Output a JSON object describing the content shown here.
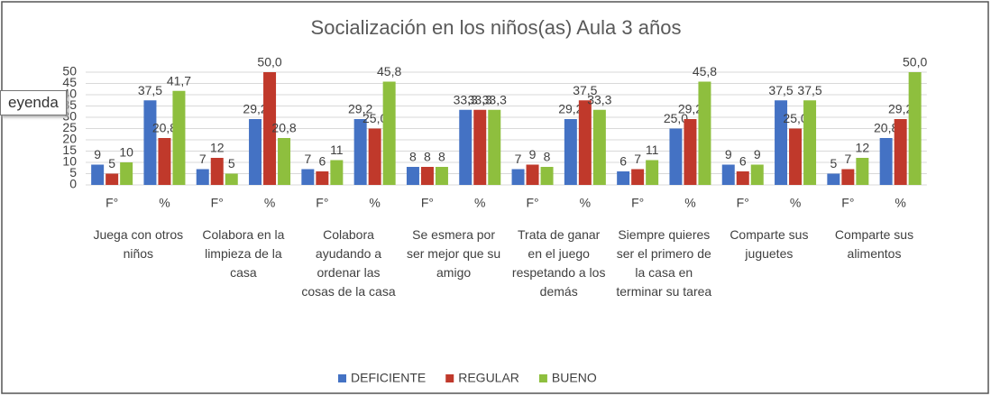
{
  "chart_data": {
    "type": "bar",
    "title": "Socialización en los niños(as) Aula 3 años",
    "tooltip": "eyenda",
    "categories": [
      "F°",
      "%",
      "F°",
      "%",
      "F°",
      "%",
      "F°",
      "%",
      "F°",
      "%",
      "F°",
      "%",
      "F°",
      "%",
      "F°",
      "%"
    ],
    "groups": [
      "Juega con otros niños",
      "Colabora en la limpieza de la casa",
      "Colabora ayudando a ordenar las cosas de la casa",
      "Se esmera por ser mejor que su amigo",
      "Trata de ganar en el juego respetando a los demás",
      "Siempre quieres ser el primero de la casa en terminar su tarea",
      "Comparte sus juguetes",
      "Comparte sus alimentos"
    ],
    "series": [
      {
        "name": "DEFICIENTE",
        "color": "#4472c4",
        "values": [
          9,
          37.5,
          7,
          29.2,
          7,
          29.2,
          8,
          33.3,
          7,
          29.2,
          6,
          25.0,
          9,
          37.5,
          5,
          20.8
        ],
        "value_labels": [
          "9",
          "37,5",
          "7",
          "29,2",
          "7",
          "29,2",
          "8",
          "33,3",
          "7",
          "29,2",
          "6",
          "25,0",
          "9",
          "37,5",
          "5",
          "20,8"
        ]
      },
      {
        "name": "REGULAR",
        "color": "#c0392b",
        "values": [
          5,
          20.8,
          12,
          50.0,
          6,
          25.0,
          8,
          33.3,
          9,
          37.5,
          7,
          29.2,
          6,
          25.0,
          7,
          29.2
        ],
        "value_labels": [
          "5",
          "20,8",
          "12",
          "50,0",
          "6",
          "25,0",
          "8",
          "33,3",
          "9",
          "37,5",
          "7",
          "29,2",
          "6",
          "25,0",
          "7",
          "29,2"
        ]
      },
      {
        "name": "BUENO",
        "color": "#8ebf3e",
        "values": [
          10,
          41.7,
          5,
          20.8,
          11,
          45.8,
          8,
          33.3,
          8,
          33.3,
          11,
          45.8,
          9,
          37.5,
          12,
          50.0
        ],
        "value_labels": [
          "10",
          "41,7",
          "5",
          "20,8",
          "11",
          "45,8",
          "8",
          "33,3",
          "8",
          "33,3",
          "11",
          "45,8",
          "9",
          "37,5",
          "12",
          "50,0"
        ]
      }
    ],
    "ylim": [
      0,
      50
    ],
    "yticks": [
      0,
      5,
      10,
      15,
      20,
      25,
      30,
      35,
      40,
      45,
      50
    ],
    "grid": true,
    "legend": "bottom"
  }
}
